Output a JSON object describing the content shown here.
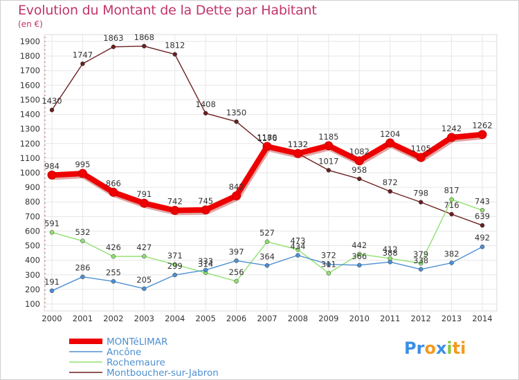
{
  "title": "Evolution du Montant de la Dette par Habitant",
  "unit": "(en €)",
  "logo": {
    "parts": [
      {
        "text": "Pr",
        "color": "#3a8ee6"
      },
      {
        "text": "o",
        "color": "#f39a1e"
      },
      {
        "text": "x",
        "color": "#3a8ee6"
      },
      {
        "text": "i",
        "color": "#8cc63f"
      },
      {
        "text": "ti",
        "color": "#f39a1e"
      }
    ]
  },
  "chart_data": {
    "type": "line",
    "x": [
      "2000",
      "2001",
      "2002",
      "2003",
      "2004",
      "2005",
      "2006",
      "2007",
      "2008",
      "2009",
      "2010",
      "2011",
      "2012",
      "2013",
      "2014"
    ],
    "ylim": [
      100,
      1900
    ],
    "yticks": [
      100,
      200,
      300,
      400,
      500,
      600,
      700,
      800,
      900,
      1000,
      1100,
      1200,
      1300,
      1400,
      1500,
      1600,
      1700,
      1800,
      1900
    ],
    "grid": true,
    "legend_position": "bottom-left",
    "series": [
      {
        "name": "Montboucher-sur-Jabron",
        "color": "#6b1f1f",
        "values": [
          1430,
          1747,
          1863,
          1868,
          1812,
          1408,
          1350,
          1176,
          1132,
          1017,
          958,
          872,
          798,
          716,
          639
        ]
      },
      {
        "name": "Rochemaure",
        "color": "#8fe070",
        "values": [
          591,
          532,
          426,
          427,
          371,
          314,
          256,
          527,
          473,
          311,
          442,
          412,
          379,
          817,
          743
        ]
      },
      {
        "name": "Ancône",
        "color": "#4d8fd1",
        "values": [
          191,
          286,
          255,
          205,
          299,
          333,
          397,
          364,
          434,
          372,
          366,
          388,
          338,
          382,
          492
        ]
      },
      {
        "name": "MONTéLIMAR",
        "color": "#ee0000",
        "values": [
          984,
          995,
          866,
          791,
          742,
          745,
          842,
          1180,
          1132,
          1185,
          1082,
          1204,
          1105,
          1242,
          1262
        ]
      }
    ],
    "legend_order": [
      "MONTéLIMAR",
      "Ancône",
      "Rochemaure",
      "Montboucher-sur-Jabron"
    ]
  }
}
